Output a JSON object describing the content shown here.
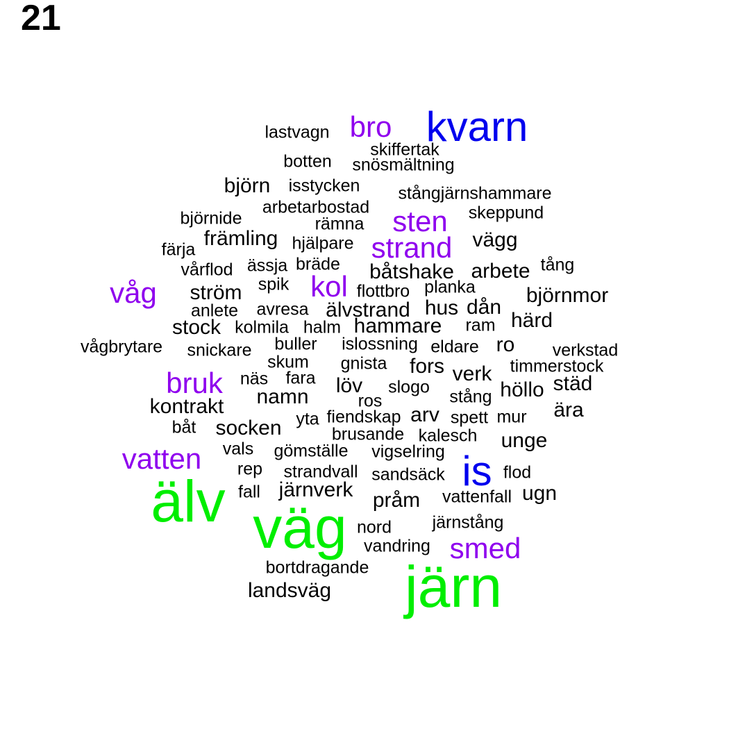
{
  "page_label": "21",
  "colors": {
    "freq1": "#000000",
    "freq2": "#000000",
    "freq3": "#8f00ee",
    "freq4": "#0000ee",
    "freq5": "#00ee00"
  },
  "words": [
    {
      "text": "kvarn",
      "s": 4
    },
    {
      "text": "bro",
      "s": 3
    },
    {
      "text": "lastvagn",
      "s": 1
    },
    {
      "text": "skiffertak",
      "s": 1
    },
    {
      "text": "botten",
      "s": 1
    },
    {
      "text": "snösmältning",
      "s": 1
    },
    {
      "text": "björn",
      "s": 2
    },
    {
      "text": "isstycken",
      "s": 1
    },
    {
      "text": "stångjärnshammare",
      "s": 1
    },
    {
      "text": "arbetarbostad",
      "s": 1
    },
    {
      "text": "björnide",
      "s": 1
    },
    {
      "text": "rämna",
      "s": 1
    },
    {
      "text": "sten",
      "s": 3
    },
    {
      "text": "skeppund",
      "s": 1
    },
    {
      "text": "främling",
      "s": 2
    },
    {
      "text": "hjälpare",
      "s": 1
    },
    {
      "text": "strand",
      "s": 3
    },
    {
      "text": "vägg",
      "s": 2
    },
    {
      "text": "färja",
      "s": 1
    },
    {
      "text": "vårflod",
      "s": 1
    },
    {
      "text": "ässja",
      "s": 1
    },
    {
      "text": "bräde",
      "s": 1
    },
    {
      "text": "båtshake",
      "s": 2
    },
    {
      "text": "arbete",
      "s": 2
    },
    {
      "text": "tång",
      "s": 1
    },
    {
      "text": "våg",
      "s": 3
    },
    {
      "text": "ström",
      "s": 2
    },
    {
      "text": "spik",
      "s": 1
    },
    {
      "text": "kol",
      "s": 3
    },
    {
      "text": "flottbro",
      "s": 1
    },
    {
      "text": "planka",
      "s": 1
    },
    {
      "text": "björnmor",
      "s": 2
    },
    {
      "text": "anlete",
      "s": 1
    },
    {
      "text": "avresa",
      "s": 1
    },
    {
      "text": "älvstrand",
      "s": 2
    },
    {
      "text": "hus",
      "s": 2
    },
    {
      "text": "dån",
      "s": 2
    },
    {
      "text": "härd",
      "s": 2
    },
    {
      "text": "stock",
      "s": 2
    },
    {
      "text": "kolmila",
      "s": 1
    },
    {
      "text": "halm",
      "s": 1
    },
    {
      "text": "hammare",
      "s": 2
    },
    {
      "text": "ram",
      "s": 1
    },
    {
      "text": "ro",
      "s": 2
    },
    {
      "text": "vågbrytare",
      "s": 1
    },
    {
      "text": "buller",
      "s": 1
    },
    {
      "text": "islossning",
      "s": 1
    },
    {
      "text": "eldare",
      "s": 1
    },
    {
      "text": "verkstad",
      "s": 1
    },
    {
      "text": "snickare",
      "s": 1
    },
    {
      "text": "skum",
      "s": 1
    },
    {
      "text": "gnista",
      "s": 1
    },
    {
      "text": "fors",
      "s": 2
    },
    {
      "text": "verk",
      "s": 2
    },
    {
      "text": "timmerstock",
      "s": 1
    },
    {
      "text": "bruk",
      "s": 3
    },
    {
      "text": "näs",
      "s": 1
    },
    {
      "text": "fara",
      "s": 1
    },
    {
      "text": "löv",
      "s": 2
    },
    {
      "text": "slogo",
      "s": 1
    },
    {
      "text": "städ",
      "s": 2
    },
    {
      "text": "namn",
      "s": 2
    },
    {
      "text": "ros",
      "s": 1
    },
    {
      "text": "stång",
      "s": 1
    },
    {
      "text": "höllo",
      "s": 2
    },
    {
      "text": "kontrakt",
      "s": 2
    },
    {
      "text": "ära",
      "s": 2
    },
    {
      "text": "yta",
      "s": 1
    },
    {
      "text": "fiendskap",
      "s": 1
    },
    {
      "text": "arv",
      "s": 2
    },
    {
      "text": "spett",
      "s": 1
    },
    {
      "text": "mur",
      "s": 1
    },
    {
      "text": "båt",
      "s": 1
    },
    {
      "text": "socken",
      "s": 2
    },
    {
      "text": "brusande",
      "s": 1
    },
    {
      "text": "kalesch",
      "s": 1
    },
    {
      "text": "unge",
      "s": 2
    },
    {
      "text": "vatten",
      "s": 3
    },
    {
      "text": "vals",
      "s": 1
    },
    {
      "text": "gömställe",
      "s": 1
    },
    {
      "text": "vigselring",
      "s": 1
    },
    {
      "text": "is",
      "s": 4
    },
    {
      "text": "rep",
      "s": 1
    },
    {
      "text": "strandvall",
      "s": 1
    },
    {
      "text": "sandsäck",
      "s": 1
    },
    {
      "text": "flod",
      "s": 1
    },
    {
      "text": "älv",
      "s": 5
    },
    {
      "text": "fall",
      "s": 1
    },
    {
      "text": "järnverk",
      "s": 2
    },
    {
      "text": "pråm",
      "s": 2
    },
    {
      "text": "vattenfall",
      "s": 1
    },
    {
      "text": "ugn",
      "s": 2
    },
    {
      "text": "väg",
      "s": 5
    },
    {
      "text": "järnstång",
      "s": 1
    },
    {
      "text": "nord",
      "s": 1
    },
    {
      "text": "vandring",
      "s": 1
    },
    {
      "text": "smed",
      "s": 3
    },
    {
      "text": "bortdragande",
      "s": 1
    },
    {
      "text": "järn",
      "s": 5
    },
    {
      "text": "landsväg",
      "s": 2
    }
  ]
}
